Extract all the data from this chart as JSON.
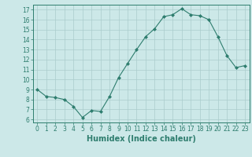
{
  "x": [
    0,
    1,
    2,
    3,
    4,
    5,
    6,
    7,
    8,
    9,
    10,
    11,
    12,
    13,
    14,
    15,
    16,
    17,
    18,
    19,
    20,
    21,
    22,
    23
  ],
  "y": [
    9,
    8.3,
    8.2,
    8.0,
    7.3,
    6.2,
    6.9,
    6.8,
    8.3,
    10.2,
    11.6,
    13.0,
    14.3,
    15.1,
    16.3,
    16.5,
    17.1,
    16.5,
    16.4,
    16.0,
    14.3,
    12.4,
    11.2,
    11.4
  ],
  "xlim": [
    -0.5,
    23.5
  ],
  "ylim": [
    5.7,
    17.5
  ],
  "yticks": [
    6,
    7,
    8,
    9,
    10,
    11,
    12,
    13,
    14,
    15,
    16,
    17
  ],
  "xticks": [
    0,
    1,
    2,
    3,
    4,
    5,
    6,
    7,
    8,
    9,
    10,
    11,
    12,
    13,
    14,
    15,
    16,
    17,
    18,
    19,
    20,
    21,
    22,
    23
  ],
  "xlabel": "Humidex (Indice chaleur)",
  "line_color": "#2e7d6e",
  "marker": "D",
  "marker_size": 2.0,
  "bg_color": "#cce8e8",
  "grid_color": "#aacccc",
  "tick_fontsize": 5.5,
  "xlabel_fontsize": 7.0
}
